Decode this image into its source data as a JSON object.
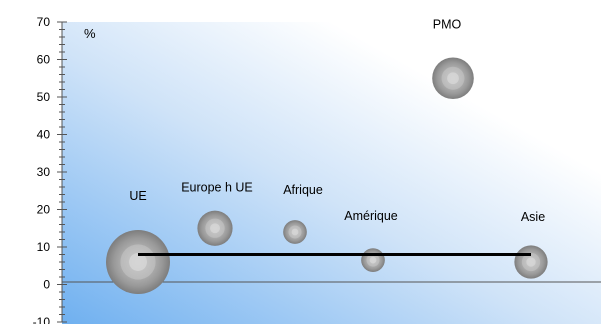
{
  "chart_data": {
    "type": "scatter",
    "title": "",
    "unit_label": "%",
    "ylim": [
      -10,
      70
    ],
    "y_ticks": [
      -10,
      0,
      10,
      20,
      30,
      40,
      50,
      60,
      70
    ],
    "grid": false,
    "legend": "none",
    "background_gradient": [
      "#6fb0f0",
      "#ffffff"
    ],
    "bubble_color": "#8c8c8c",
    "reference_line": {
      "from": "UE",
      "to": "Asie",
      "value": 8,
      "color": "#000000"
    },
    "points": [
      {
        "label": "UE",
        "value": 6,
        "size": 1.0
      },
      {
        "label": "Europe h UE",
        "value": 15,
        "size": 0.55
      },
      {
        "label": "Afrique",
        "value": 14,
        "size": 0.37
      },
      {
        "label": "Amérique",
        "value": 6.5,
        "size": 0.37
      },
      {
        "label": "PMO",
        "value": 55,
        "size": 0.65
      },
      {
        "label": "Asie",
        "value": 6,
        "size": 0.52
      }
    ]
  }
}
